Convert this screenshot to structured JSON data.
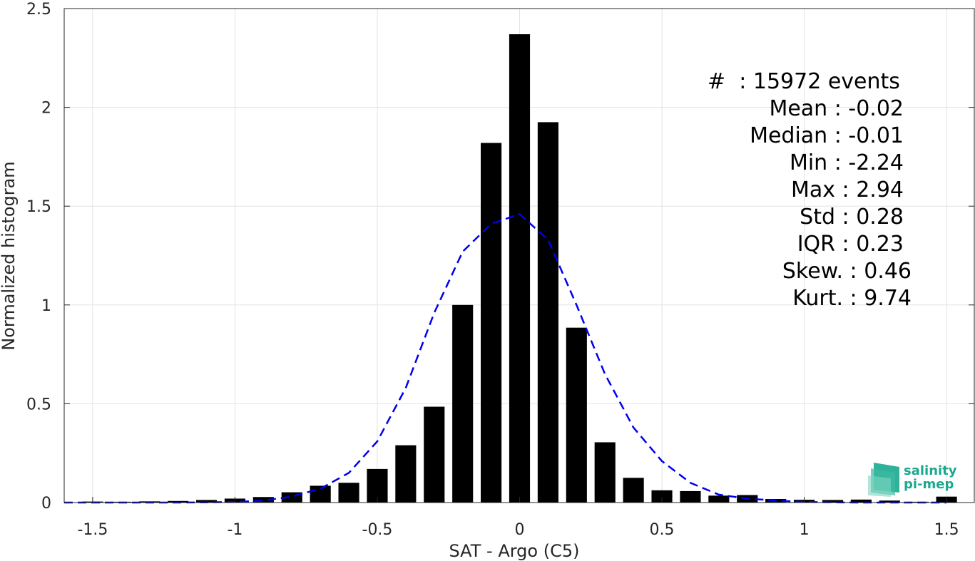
{
  "chart_data": {
    "type": "bar",
    "xlabel": "SAT - Argo (C5)",
    "ylabel": "Normalized histogram",
    "xlim": [
      -1.6,
      1.6
    ],
    "ylim": [
      0,
      2.5
    ],
    "xticks": [
      "-1.5",
      "-1",
      "-0.5",
      "0",
      "0.5",
      "1",
      "1.5"
    ],
    "yticks": [
      "0",
      "0.5",
      "1",
      "1.5",
      "2",
      "2.5"
    ],
    "grid": true,
    "bars": {
      "color": "#000000",
      "x": [
        -1.5,
        -1.4,
        -1.3,
        -1.2,
        -1.1,
        -1.0,
        -0.9,
        -0.8,
        -0.7,
        -0.6,
        -0.5,
        -0.4,
        -0.3,
        -0.2,
        -0.1,
        0.0,
        0.1,
        0.2,
        0.3,
        0.4,
        0.5,
        0.6,
        0.7,
        0.8,
        0.9,
        1.0,
        1.1,
        1.2,
        1.3,
        1.4,
        1.5
      ],
      "values": [
        0.005,
        0.004,
        0.006,
        0.008,
        0.013,
        0.02,
        0.028,
        0.052,
        0.085,
        0.1,
        0.17,
        0.29,
        0.485,
        1.0,
        1.82,
        2.37,
        1.925,
        0.885,
        0.305,
        0.125,
        0.062,
        0.058,
        0.035,
        0.038,
        0.018,
        0.014,
        0.013,
        0.015,
        0.01,
        0.004,
        0.03
      ]
    },
    "fit": {
      "style": "dashed",
      "color": "#0000ee",
      "x": [
        -1.6,
        -1.5,
        -1.4,
        -1.3,
        -1.2,
        -1.1,
        -1.0,
        -0.9,
        -0.8,
        -0.7,
        -0.6,
        -0.5,
        -0.4,
        -0.3,
        -0.2,
        -0.1,
        0.0,
        0.1,
        0.2,
        0.3,
        0.4,
        0.5,
        0.6,
        0.7,
        0.8,
        0.9,
        1.0,
        1.1,
        1.2,
        1.3,
        1.4,
        1.5
      ],
      "y": [
        0.0,
        0.0,
        0.0,
        0.0,
        0.0,
        0.001,
        0.003,
        0.01,
        0.03,
        0.07,
        0.15,
        0.31,
        0.58,
        0.96,
        1.27,
        1.41,
        1.46,
        1.33,
        1.0,
        0.65,
        0.38,
        0.21,
        0.1,
        0.04,
        0.02,
        0.01,
        0.003,
        0.001,
        0.0,
        0.0,
        0.0,
        0.0
      ]
    }
  },
  "stats": {
    "count": "#  : 15972 events",
    "mean": "Mean : -0.02",
    "median": "Median : -0.01",
    "min": "Min : -2.24",
    "max": "Max : 2.94",
    "std": "Std : 0.28",
    "iqr": "IQR : 0.23",
    "skew": "Skew. : 0.46",
    "kurt": "Kurt. : 9.74"
  },
  "logo": {
    "line1": "salinity",
    "line2": "pi-mep",
    "color": "#1aa88e"
  }
}
